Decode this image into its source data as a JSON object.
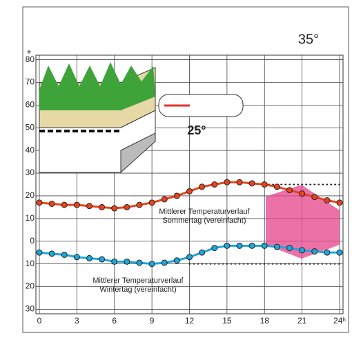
{
  "chart_data": {
    "type": "line",
    "x": [
      0,
      1,
      2,
      3,
      4,
      5,
      6,
      7,
      8,
      9,
      10,
      11,
      12,
      13,
      14,
      15,
      16,
      17,
      18,
      19,
      20,
      21,
      22,
      23,
      24
    ],
    "series": [
      {
        "name": "Mittlerer Temperaturverlauf Sommertag (vereinfacht)",
        "color": "#e8441c",
        "values": [
          17,
          16.5,
          16,
          16,
          15.5,
          15,
          14.5,
          15,
          16,
          17,
          18.5,
          20,
          22,
          24,
          25,
          26,
          26,
          25.5,
          25,
          24,
          22.5,
          21,
          19.5,
          18,
          17
        ]
      },
      {
        "name": "Mittlerer Temperaturverlauf Wintertag (vereinfacht)",
        "color": "#1ea6dc",
        "values": [
          -5,
          -5.5,
          -6,
          -7,
          -7.5,
          -8,
          -9,
          -9,
          -9.5,
          -10,
          -9.5,
          -8.5,
          -7,
          -5,
          -3,
          -2,
          -2,
          -2,
          -2,
          -2.5,
          -3,
          -4,
          -4.5,
          -5,
          -5
        ]
      }
    ],
    "xlim": [
      0,
      24
    ],
    "ylim": [
      -32,
      82
    ],
    "xticks": [
      0,
      3,
      6,
      9,
      12,
      15,
      18,
      21,
      {
        "value": 24,
        "label": "24ʰ"
      }
    ],
    "yticks": [
      {
        "value": -30,
        "label": "30"
      },
      {
        "value": -20,
        "label": "20"
      },
      {
        "value": -10,
        "label": "10"
      },
      0,
      10,
      20,
      30,
      40,
      50,
      60,
      70,
      80
    ],
    "y_sign_label": "+",
    "reference_lines": [
      {
        "value": 25,
        "x": [
          18,
          24
        ]
      },
      {
        "value": -10,
        "x": [
          12,
          24
        ]
      }
    ],
    "annotations": [
      "35°",
      "25°"
    ],
    "grid": true
  }
}
